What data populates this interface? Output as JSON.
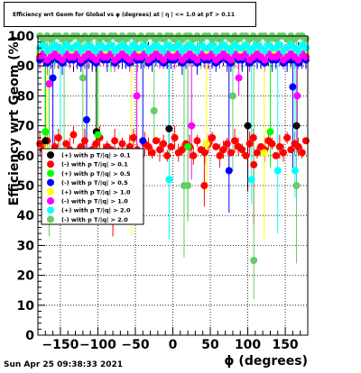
{
  "title": "Efficiency wrt Geom for Global vs φ (degrees) at | η | <= 1.0 at pT > 0.11",
  "footer": "Sun Apr 25 09:38:33 2021",
  "chart_data": {
    "type": "scatter",
    "xlabel": "ϕ (degrees)",
    "ylabel": "Efficiency wrt Geom (%)",
    "xlim": [
      -180,
      180
    ],
    "ylim": [
      0,
      100
    ],
    "x_ticks": [
      -150,
      -100,
      -50,
      0,
      50,
      100,
      150
    ],
    "y_ticks": [
      0,
      10,
      20,
      30,
      40,
      50,
      60,
      70,
      80,
      90,
      100
    ],
    "grid": true,
    "legend_position": "left-middle",
    "n_bins": 72,
    "series": [
      {
        "name": "(+) with p T/|q| > 0.1",
        "color": "#000000",
        "marker": "circle",
        "base": 93,
        "values": [
          93,
          94,
          92,
          93,
          94,
          93,
          93,
          94,
          93,
          92,
          93,
          94,
          93,
          93,
          92,
          94,
          93,
          94,
          93,
          93,
          92,
          93,
          94,
          93,
          93,
          94,
          92,
          93,
          93,
          94,
          93,
          93,
          94,
          93,
          92,
          93,
          93,
          94,
          93,
          93,
          92,
          94,
          93,
          93,
          94,
          93,
          93,
          92,
          93,
          94,
          93,
          93,
          94,
          93,
          92,
          93,
          93,
          94,
          93,
          93,
          92,
          94,
          93,
          93,
          94,
          93,
          93,
          92,
          93,
          94,
          93,
          93
        ]
      },
      {
        "name": "(-) with p T/|q| > 0.1",
        "color": "#ff0000",
        "marker": "circle",
        "base": 63,
        "values": [
          64,
          62,
          65,
          61,
          63,
          66,
          60,
          64,
          62,
          67,
          61,
          63,
          65,
          60,
          62,
          64,
          66,
          61,
          63,
          62,
          65,
          60,
          64,
          61,
          63,
          66,
          62,
          60,
          64,
          63,
          61,
          65,
          62,
          64,
          60,
          63,
          66,
          61,
          62,
          64,
          63,
          60,
          65,
          62,
          61,
          64,
          66,
          63,
          60,
          62,
          64,
          61,
          65,
          63,
          62,
          60,
          64,
          66,
          61,
          63,
          62,
          65,
          64,
          60,
          63,
          61,
          66,
          62,
          64,
          63,
          61,
          65
        ]
      },
      {
        "name": "(+) with p T/|q| > 0.5",
        "color": "#00ff00",
        "marker": "circle",
        "base": 93,
        "values": [
          94,
          93,
          94,
          93,
          92,
          94,
          93,
          94,
          93,
          93,
          94,
          93,
          92,
          94,
          93,
          94,
          93,
          93,
          94,
          92,
          93,
          94,
          93,
          94,
          93,
          93,
          94,
          93,
          92,
          94,
          93,
          94,
          93,
          93,
          94,
          93,
          92,
          94,
          93,
          94,
          93,
          93,
          94,
          93,
          92,
          94,
          93,
          94,
          93,
          93,
          94,
          93,
          92,
          94,
          93,
          94,
          93,
          93,
          94,
          93,
          92,
          94,
          93,
          94,
          93,
          93,
          94,
          93,
          92,
          94,
          93,
          94
        ]
      },
      {
        "name": "(-) with p T/|q| > 0.5",
        "color": "#0000ff",
        "marker": "circle",
        "base": 92,
        "values": [
          92,
          93,
          91,
          92,
          93,
          92,
          91,
          93,
          92,
          92,
          93,
          91,
          92,
          93,
          92,
          91,
          93,
          92,
          92,
          93,
          91,
          92,
          93,
          92,
          91,
          93,
          92,
          92,
          93,
          91,
          92,
          93,
          92,
          91,
          93,
          92,
          92,
          93,
          91,
          92,
          93,
          92,
          91,
          93,
          92,
          92,
          93,
          91,
          92,
          93,
          92,
          91,
          93,
          92,
          92,
          93,
          91,
          92,
          93,
          92,
          91,
          93,
          92,
          92,
          93,
          91,
          92,
          93,
          92,
          91,
          93,
          92
        ]
      },
      {
        "name": "(+) with p T/|q| > 1.0",
        "color": "#ffff00",
        "marker": "circle",
        "base": 94,
        "values": [
          94,
          95,
          93,
          94,
          95,
          94,
          93,
          95,
          94,
          94,
          95,
          93,
          94,
          95,
          94,
          93,
          95,
          94,
          94,
          95,
          93,
          94,
          95,
          94,
          93,
          95,
          94,
          94,
          95,
          93,
          94,
          95,
          94,
          93,
          95,
          94,
          94,
          95,
          93,
          94,
          95,
          94,
          93,
          95,
          94,
          94,
          95,
          93,
          94,
          95,
          94,
          93,
          95,
          94,
          94,
          95,
          93,
          94,
          95,
          94,
          93,
          95,
          94,
          94,
          95,
          93,
          94,
          95,
          94,
          93,
          95,
          94
        ]
      },
      {
        "name": "(-) with p T/|q| > 1.0",
        "color": "#ff00ff",
        "marker": "circle",
        "base": 93,
        "values": [
          93,
          94,
          92,
          93,
          94,
          93,
          92,
          94,
          93,
          93,
          94,
          92,
          93,
          94,
          93,
          92,
          94,
          93,
          93,
          94,
          92,
          93,
          94,
          93,
          92,
          94,
          93,
          93,
          94,
          92,
          93,
          94,
          93,
          92,
          94,
          93,
          93,
          94,
          92,
          93,
          94,
          93,
          92,
          94,
          93,
          93,
          94,
          92,
          93,
          94,
          93,
          92,
          94,
          93,
          93,
          94,
          92,
          93,
          94,
          93,
          92,
          94,
          93,
          93,
          94,
          92,
          93,
          94,
          93,
          92,
          94,
          93
        ]
      },
      {
        "name": "(+) with p T/|q| > 2.0",
        "color": "#00ffff",
        "marker": "circle",
        "base": 96,
        "values": [
          96,
          97,
          95,
          96,
          97,
          96,
          95,
          97,
          96,
          96,
          97,
          95,
          96,
          97,
          96,
          95,
          97,
          96,
          96,
          97,
          95,
          96,
          97,
          96,
          95,
          97,
          96,
          96,
          97,
          95,
          96,
          97,
          96,
          95,
          97,
          96,
          96,
          97,
          95,
          96,
          97,
          96,
          95,
          97,
          96,
          96,
          97,
          95,
          96,
          97,
          96,
          95,
          97,
          96,
          96,
          97,
          95,
          96,
          97,
          96,
          95,
          97,
          96,
          96,
          97,
          95,
          96,
          97,
          96,
          95,
          97,
          96
        ]
      },
      {
        "name": "(-) with p T/|q| > 2.0",
        "color": "#66cc66",
        "marker": "circle",
        "base": 99,
        "values": [
          100,
          99,
          100,
          99,
          100,
          100,
          99,
          100,
          99,
          100,
          100,
          99,
          100,
          99,
          100,
          100,
          99,
          100,
          99,
          100,
          100,
          99,
          100,
          99,
          100,
          100,
          99,
          100,
          99,
          100,
          100,
          99,
          100,
          99,
          100,
          100,
          99,
          100,
          99,
          100,
          100,
          99,
          100,
          99,
          100,
          100,
          99,
          100,
          99,
          100,
          100,
          99,
          100,
          99,
          100,
          100,
          99,
          100,
          99,
          100,
          100,
          99,
          100,
          99,
          100,
          100,
          99,
          100,
          99,
          100,
          100,
          99
        ]
      }
    ],
    "outliers": [
      {
        "series": 1,
        "x": -170,
        "y": 56
      },
      {
        "series": 1,
        "x": -80,
        "y": 52
      },
      {
        "series": 1,
        "x": 42,
        "y": 50
      },
      {
        "series": 1,
        "x": 108,
        "y": 57
      },
      {
        "series": 0,
        "x": -170,
        "y": 65
      },
      {
        "series": 0,
        "x": -102,
        "y": 68
      },
      {
        "series": 0,
        "x": -5,
        "y": 69
      },
      {
        "series": 0,
        "x": 100,
        "y": 70
      },
      {
        "series": 0,
        "x": 165,
        "y": 70
      },
      {
        "series": 2,
        "x": -170,
        "y": 68
      },
      {
        "series": 2,
        "x": -100,
        "y": 67
      },
      {
        "series": 2,
        "x": 20,
        "y": 63
      },
      {
        "series": 2,
        "x": 130,
        "y": 68
      },
      {
        "series": 3,
        "x": -160,
        "y": 86
      },
      {
        "series": 3,
        "x": -115,
        "y": 72
      },
      {
        "series": 3,
        "x": -40,
        "y": 65
      },
      {
        "series": 3,
        "x": 75,
        "y": 55
      },
      {
        "series": 3,
        "x": 160,
        "y": 83
      },
      {
        "series": 4,
        "x": -168,
        "y": 62
      },
      {
        "series": 4,
        "x": -55,
        "y": 61
      },
      {
        "series": 4,
        "x": 45,
        "y": 64
      },
      {
        "series": 4,
        "x": 122,
        "y": 61
      },
      {
        "series": 5,
        "x": -165,
        "y": 84
      },
      {
        "series": 5,
        "x": -48,
        "y": 80
      },
      {
        "series": 5,
        "x": 25,
        "y": 70
      },
      {
        "series": 5,
        "x": 88,
        "y": 86
      },
      {
        "series": 5,
        "x": 166,
        "y": 80
      },
      {
        "series": 6,
        "x": -150,
        "y": 55
      },
      {
        "series": 6,
        "x": -5,
        "y": 52
      },
      {
        "series": 6,
        "x": 105,
        "y": 52
      },
      {
        "series": 6,
        "x": 140,
        "y": 55
      },
      {
        "series": 6,
        "x": 163,
        "y": 55
      },
      {
        "series": 7,
        "x": -165,
        "y": 55
      },
      {
        "series": 7,
        "x": -145,
        "y": 58
      },
      {
        "series": 7,
        "x": -120,
        "y": 86
      },
      {
        "series": 7,
        "x": -25,
        "y": 75
      },
      {
        "series": 7,
        "x": 15,
        "y": 50
      },
      {
        "series": 7,
        "x": 20,
        "y": 50
      },
      {
        "series": 7,
        "x": 80,
        "y": 80
      },
      {
        "series": 7,
        "x": 108,
        "y": 25
      },
      {
        "series": 7,
        "x": 165,
        "y": 50
      }
    ]
  }
}
